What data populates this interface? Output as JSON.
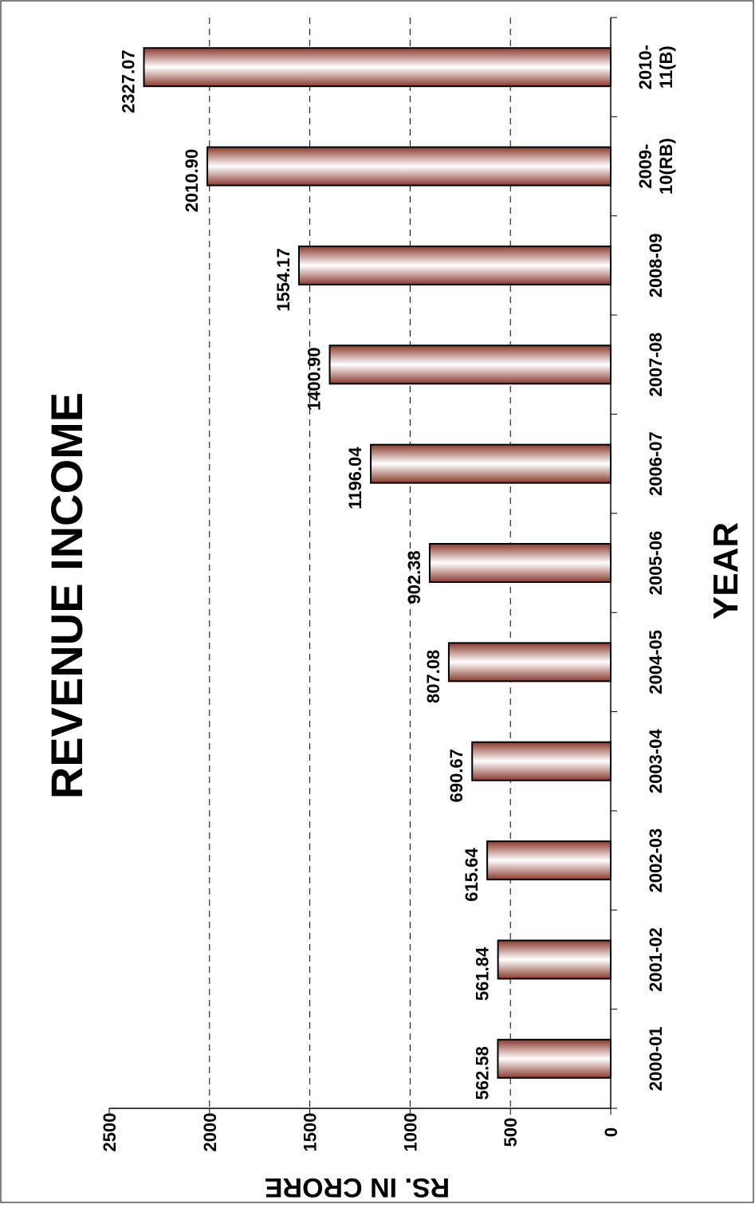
{
  "chart_data": {
    "type": "bar",
    "orientation": "rotated",
    "title": "REVENUE INCOME",
    "xlabel": "YEAR",
    "ylabel": "RS. IN CRORE",
    "categories": [
      [
        "2000-01"
      ],
      [
        "2001-02"
      ],
      [
        "2002-03"
      ],
      [
        "2003-04"
      ],
      [
        "2004-05"
      ],
      [
        "2005-06"
      ],
      [
        "2006-07"
      ],
      [
        "2007-08"
      ],
      [
        "2008-09"
      ],
      [
        "2009-",
        "10(RB)"
      ],
      [
        "2010-",
        "11(B)"
      ]
    ],
    "values": [
      562.58,
      561.84,
      615.64,
      690.67,
      807.08,
      902.38,
      1196.04,
      1400.9,
      1554.17,
      2010.9,
      2327.07
    ],
    "value_labels": [
      "562.58",
      "561.84",
      "615.64",
      "690.67",
      "807.08",
      "902.38",
      "1196.04",
      "1400.90",
      "1554.17",
      "2010.90",
      "2327.07"
    ],
    "ylim": [
      0,
      2500
    ],
    "yticks": [
      "0",
      "500",
      "1000",
      "1500",
      "2000",
      "2500"
    ],
    "grid": true,
    "bar_color": "#8b3a2e"
  }
}
